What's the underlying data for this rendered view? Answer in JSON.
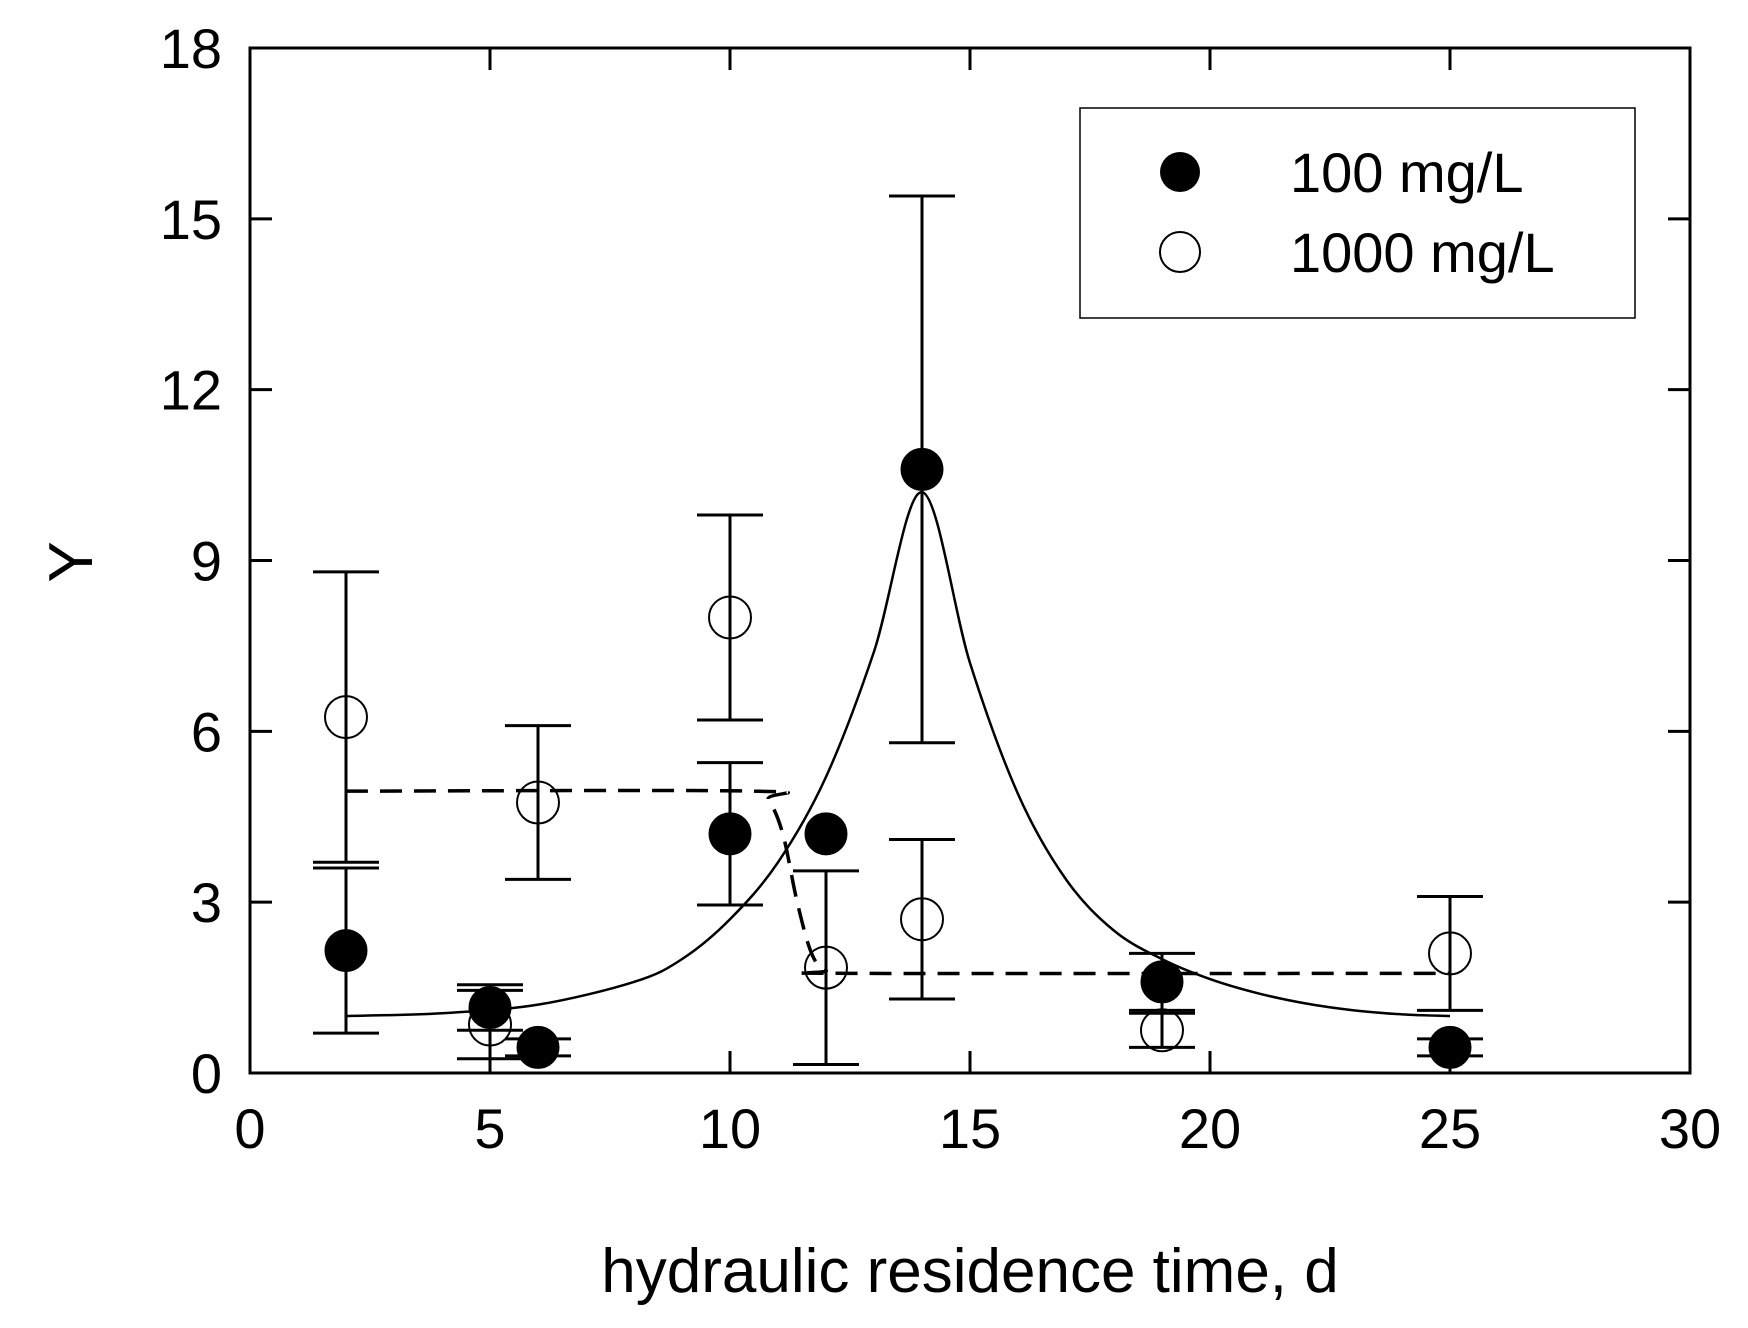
{
  "chart_data": {
    "type": "scatter",
    "title": "",
    "xlabel": "hydraulic residence time, d",
    "ylabel": "Y",
    "xlim": [
      0,
      30
    ],
    "ylim": [
      0,
      18
    ],
    "xticks": [
      0,
      5,
      10,
      15,
      20,
      25,
      30
    ],
    "yticks": [
      0,
      3,
      6,
      9,
      12,
      15,
      18
    ],
    "grid": false,
    "legend_position": "top-right",
    "series": [
      {
        "name": "100 mg/L",
        "marker": "filled-circle",
        "points": [
          {
            "x": 2,
            "y": 2.15,
            "err": 1.45
          },
          {
            "x": 5,
            "y": 1.15,
            "err": 0.4
          },
          {
            "x": 6,
            "y": 0.45,
            "err": 0.15
          },
          {
            "x": 10,
            "y": 4.2,
            "err": 1.25
          },
          {
            "x": 12,
            "y": 4.2,
            "err": 0
          },
          {
            "x": 14,
            "y": 10.6,
            "err": 4.8
          },
          {
            "x": 19,
            "y": 1.6,
            "err": 0.5
          },
          {
            "x": 25,
            "y": 0.45,
            "err": 0.15
          }
        ],
        "fit": {
          "style": "solid",
          "points": [
            [
              2,
              1.0
            ],
            [
              4,
              1.05
            ],
            [
              6,
              1.2
            ],
            [
              8,
              1.6
            ],
            [
              9,
              2.0
            ],
            [
              10,
              2.7
            ],
            [
              11,
              3.7
            ],
            [
              12,
              5.2
            ],
            [
              13,
              7.4
            ],
            [
              14,
              10.2
            ],
            [
              15,
              7.2
            ],
            [
              16,
              4.9
            ],
            [
              17,
              3.4
            ],
            [
              18,
              2.5
            ],
            [
              19,
              2.0
            ],
            [
              20,
              1.65
            ],
            [
              21,
              1.4
            ],
            [
              22,
              1.22
            ],
            [
              23,
              1.1
            ],
            [
              24,
              1.03
            ],
            [
              25,
              1.0
            ]
          ]
        }
      },
      {
        "name": "1000 mg/L",
        "marker": "open-circle",
        "points": [
          {
            "x": 2,
            "y": 6.25,
            "err": 2.55
          },
          {
            "x": 5,
            "y": 0.85,
            "err": 0.6
          },
          {
            "x": 6,
            "y": 4.75,
            "err": 1.35
          },
          {
            "x": 10,
            "y": 8.0,
            "err": 1.8
          },
          {
            "x": 12,
            "y": 1.85,
            "err": 1.7
          },
          {
            "x": 14,
            "y": 2.7,
            "err": 1.4
          },
          {
            "x": 19,
            "y": 0.75,
            "err": 0.3
          },
          {
            "x": 25,
            "y": 2.1,
            "err": 1.0
          }
        ],
        "fit": {
          "style": "dashed",
          "points": [
            [
              2,
              4.95
            ],
            [
              10.5,
              4.95
            ],
            [
              10.8,
              4.8
            ],
            [
              11.1,
              4.2
            ],
            [
              11.4,
              3.0
            ],
            [
              11.7,
              2.1
            ],
            [
              12,
              1.8
            ],
            [
              12.5,
              1.75
            ],
            [
              25,
              1.75
            ]
          ]
        }
      }
    ]
  }
}
